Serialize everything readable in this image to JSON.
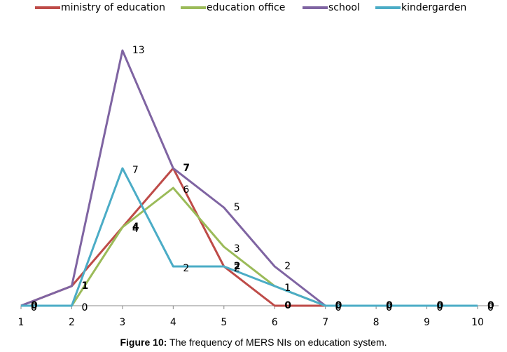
{
  "chart_data": {
    "type": "line",
    "x": [
      1,
      2,
      3,
      4,
      5,
      6,
      7,
      8,
      9,
      10
    ],
    "xlim": [
      1,
      10
    ],
    "xticks": [
      1,
      2,
      3,
      4,
      5,
      6,
      7,
      8,
      9,
      10
    ],
    "ylim": [
      0,
      14
    ],
    "legend": "top",
    "series": [
      {
        "name": "ministry of education",
        "color": "#be4b48",
        "values": [
          0,
          1,
          4,
          7,
          2,
          0,
          0,
          0,
          0,
          0
        ]
      },
      {
        "name": "education office",
        "color": "#9bbb59",
        "values": [
          0,
          0,
          4,
          6,
          3,
          1,
          0,
          0,
          0,
          0
        ]
      },
      {
        "name": "school",
        "color": "#7f64a2",
        "values": [
          0,
          1,
          13,
          7,
          5,
          2,
          0,
          0,
          0,
          0
        ]
      },
      {
        "name": "kindergarden",
        "color": "#4bacc6",
        "values": [
          0,
          0,
          7,
          2,
          2,
          1,
          0,
          0,
          0,
          0
        ]
      }
    ],
    "caption_label": "Figure 10:",
    "caption_text": "The frequency of MERS NIs on education system."
  }
}
